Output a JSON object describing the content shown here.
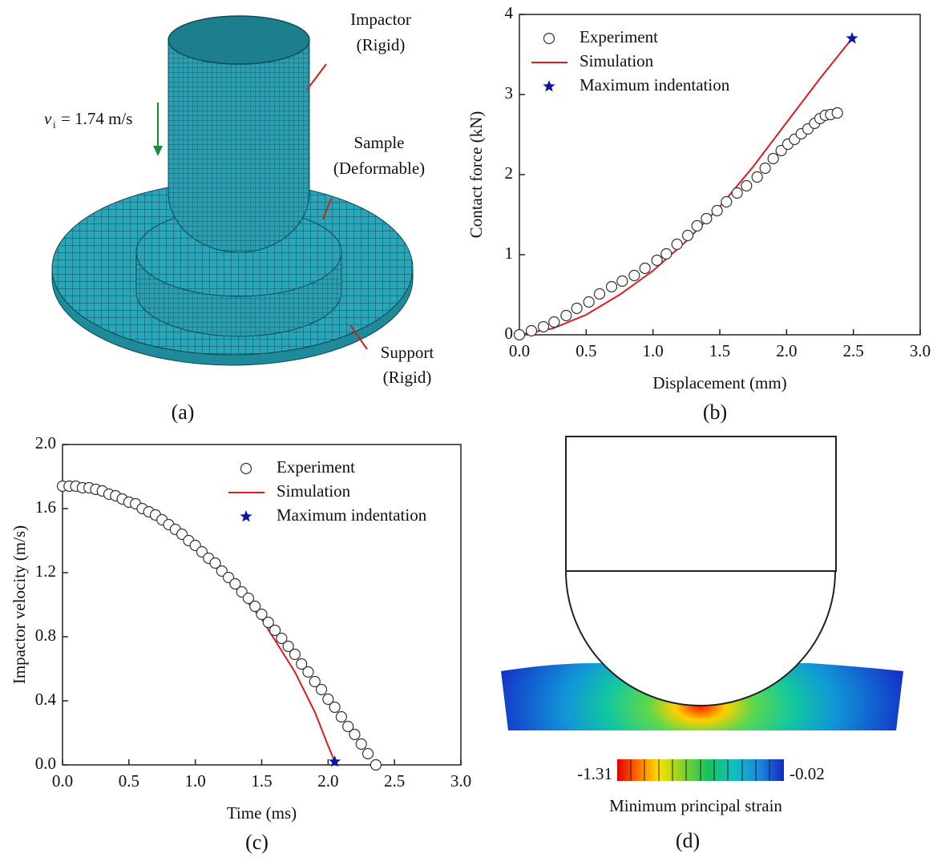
{
  "chart_data": [
    {
      "type": "line",
      "panel_label": "(b)",
      "xlabel": "Displacement (mm)",
      "ylabel": "Contact force (kN)",
      "xlim": [
        0,
        3
      ],
      "ylim": [
        0,
        4
      ],
      "xticks": [
        {
          "value": 0,
          "label": "0.0"
        },
        0.5,
        {
          "value": 1,
          "label": "1.0"
        },
        1.5,
        {
          "value": 2,
          "label": "2.0"
        },
        2.5,
        {
          "value": 3,
          "label": "3.0"
        }
      ],
      "yticks": [
        0,
        1,
        2,
        3,
        4
      ],
      "legend": "upper left",
      "series": [
        {
          "name": "Experiment",
          "marker": "circle",
          "color": "#333333",
          "x": [
            0,
            0.09,
            0.18,
            0.26,
            0.35,
            0.43,
            0.52,
            0.6,
            0.69,
            0.77,
            0.86,
            0.94,
            1.03,
            1.1,
            1.18,
            1.26,
            1.33,
            1.4,
            1.48,
            1.55,
            1.63,
            1.7,
            1.78,
            1.84,
            1.9,
            1.96,
            2.01,
            2.06,
            2.11,
            2.16,
            2.21,
            2.25,
            2.29,
            2.33,
            2.38
          ],
          "values": [
            0,
            0.05,
            0.1,
            0.16,
            0.24,
            0.33,
            0.41,
            0.51,
            0.6,
            0.67,
            0.74,
            0.83,
            0.93,
            1.01,
            1.13,
            1.24,
            1.36,
            1.45,
            1.55,
            1.66,
            1.77,
            1.86,
            1.97,
            2.08,
            2.2,
            2.3,
            2.38,
            2.44,
            2.51,
            2.57,
            2.64,
            2.7,
            2.74,
            2.75,
            2.77
          ]
        },
        {
          "name": "Simulation",
          "marker": "line",
          "color": "#e31a1c",
          "x": [
            0,
            0.25,
            0.5,
            0.75,
            1.0,
            1.25,
            1.5,
            1.75,
            2.0,
            2.25,
            2.49
          ],
          "values": [
            0,
            0.08,
            0.25,
            0.5,
            0.8,
            1.17,
            1.6,
            2.1,
            2.65,
            3.2,
            3.7
          ]
        },
        {
          "name": "Maximum indentation",
          "marker": "star",
          "color": "#0b14a8",
          "x": [
            2.49
          ],
          "values": [
            3.7
          ]
        }
      ]
    },
    {
      "type": "line",
      "panel_label": "(c)",
      "xlabel": "Time (ms)",
      "ylabel": "Impactor velocity (m/s)",
      "xlim": [
        0,
        3
      ],
      "ylim": [
        0,
        2
      ],
      "xticks": [
        {
          "value": 0,
          "label": "0.0"
        },
        0.5,
        {
          "value": 1,
          "label": "1.0"
        },
        1.5,
        {
          "value": 2,
          "label": "2.0"
        },
        2.5,
        {
          "value": 3,
          "label": "3.0"
        }
      ],
      "yticks": [
        {
          "value": 0,
          "label": "0.0"
        },
        0.4,
        0.8,
        1.2,
        1.6,
        {
          "value": 2,
          "label": "2.0"
        }
      ],
      "legend": "upper right",
      "series": [
        {
          "name": "Experiment",
          "marker": "circle",
          "color": "#333333",
          "x": [
            0,
            0.05,
            0.1,
            0.15,
            0.2,
            0.25,
            0.3,
            0.35,
            0.4,
            0.45,
            0.5,
            0.55,
            0.6,
            0.65,
            0.7,
            0.75,
            0.8,
            0.85,
            0.9,
            0.95,
            1.0,
            1.05,
            1.1,
            1.15,
            1.2,
            1.25,
            1.3,
            1.35,
            1.4,
            1.45,
            1.5,
            1.55,
            1.6,
            1.65,
            1.7,
            1.75,
            1.8,
            1.85,
            1.9,
            1.95,
            2.0,
            2.05,
            2.1,
            2.15,
            2.2,
            2.25,
            2.3,
            2.36
          ],
          "values": [
            1.74,
            1.74,
            1.74,
            1.73,
            1.73,
            1.72,
            1.71,
            1.69,
            1.68,
            1.66,
            1.64,
            1.63,
            1.6,
            1.58,
            1.56,
            1.53,
            1.5,
            1.47,
            1.44,
            1.4,
            1.37,
            1.33,
            1.29,
            1.26,
            1.21,
            1.17,
            1.13,
            1.08,
            1.04,
            0.99,
            0.94,
            0.89,
            0.84,
            0.79,
            0.74,
            0.69,
            0.63,
            0.58,
            0.52,
            0.47,
            0.41,
            0.36,
            0.3,
            0.24,
            0.19,
            0.13,
            0.07,
            0
          ]
        },
        {
          "name": "Simulation",
          "marker": "line",
          "color": "#e31a1c",
          "x": [
            0,
            0.25,
            0.5,
            0.75,
            1.0,
            1.25,
            1.5,
            1.75,
            1.9,
            2.0,
            2.05
          ],
          "values": [
            1.74,
            1.72,
            1.65,
            1.53,
            1.37,
            1.16,
            0.91,
            0.58,
            0.33,
            0.12,
            0.02
          ]
        },
        {
          "name": "Maximum indentation",
          "marker": "star",
          "color": "#0b14a8",
          "x": [
            2.05
          ],
          "values": [
            0.02
          ]
        }
      ]
    }
  ],
  "figure_a": {
    "panel_label": "(a)",
    "velocity_symbol": "v",
    "velocity_subscript": "i",
    "velocity_text": "= 1.74 m/s",
    "annotations": [
      "Impactor",
      "(Rigid)",
      "Sample",
      "(Deformable)",
      "Support",
      "(Rigid)"
    ]
  },
  "figure_d": {
    "panel_label": "(d)",
    "colorbar_min": "-1.31",
    "colorbar_max": "-0.02",
    "colorbar_title": "Minimum principal strain"
  }
}
